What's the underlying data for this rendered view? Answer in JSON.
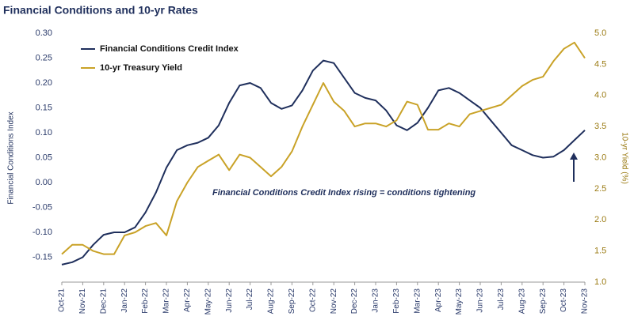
{
  "chart_data": {
    "type": "line",
    "title": "Financial Conditions and 10-yr Rates",
    "annotation": "Financial Conditions Credit Index rising = conditions tightening",
    "ylabel": "Financial Conditions Index",
    "y2label": "10-yr Yield (%)",
    "categories": [
      "Oct-21",
      null,
      "Nov-21",
      null,
      "Dec-21",
      null,
      "Jan-22",
      null,
      "Feb-22",
      null,
      "Mar-22",
      null,
      "Apr-22",
      null,
      "May-22",
      null,
      "Jun-22",
      null,
      "Jul-22",
      null,
      "Aug-22",
      null,
      "Sep-22",
      null,
      "Oct-22",
      null,
      "Nov-22",
      null,
      "Dec-22",
      null,
      "Jan-23",
      null,
      "Feb-23",
      null,
      "Mar-23",
      null,
      "Apr-23",
      null,
      "May-23",
      null,
      "Jun-23",
      null,
      "Jul-23",
      null,
      "Aug-23",
      null,
      "Sep-23",
      null,
      "Oct-23",
      null,
      "Nov-23"
    ],
    "series": [
      {
        "name": "Financial Conditions Credit Index",
        "color": "#1f2f5c",
        "axis": "y",
        "values": [
          -0.165,
          -0.16,
          -0.15,
          -0.125,
          -0.105,
          -0.1,
          -0.1,
          -0.09,
          -0.06,
          -0.02,
          0.03,
          0.065,
          0.075,
          0.08,
          0.09,
          0.115,
          0.16,
          0.195,
          0.2,
          0.19,
          0.16,
          0.148,
          0.155,
          0.185,
          0.225,
          0.245,
          0.24,
          0.21,
          0.18,
          0.17,
          0.165,
          0.145,
          0.115,
          0.105,
          0.12,
          0.15,
          0.185,
          0.19,
          0.18,
          0.165,
          0.15,
          0.125,
          0.1,
          0.075,
          0.065,
          0.055,
          0.05,
          0.052,
          0.065,
          0.085,
          0.105
        ]
      },
      {
        "name": "10-yr Treasury Yield",
        "color": "#c9a227",
        "axis": "y2",
        "values": [
          1.45,
          1.6,
          1.6,
          1.5,
          1.45,
          1.45,
          1.75,
          1.8,
          1.9,
          1.95,
          1.75,
          2.3,
          2.6,
          2.85,
          2.95,
          3.05,
          2.8,
          3.05,
          3.0,
          2.85,
          2.7,
          2.85,
          3.1,
          3.5,
          3.85,
          4.2,
          3.9,
          3.75,
          3.5,
          3.55,
          3.55,
          3.5,
          3.6,
          3.9,
          3.85,
          3.45,
          3.45,
          3.55,
          3.5,
          3.7,
          3.75,
          3.8,
          3.85,
          4.0,
          4.15,
          4.25,
          4.3,
          4.55,
          4.75,
          4.85,
          4.6
        ]
      }
    ],
    "ylim": [
      -0.2,
      0.3
    ],
    "yticks": [
      -0.15,
      {
        "value": -0.1,
        "label": "-0.10"
      },
      {
        "value": -0.05,
        "label": "-0.05"
      },
      {
        "value": 0,
        "label": "0.00"
      },
      {
        "value": 0.05,
        "label": "0.05"
      },
      {
        "value": 0.1,
        "label": "0.10"
      },
      {
        "value": 0.15,
        "label": "0.15"
      },
      {
        "value": 0.2,
        "label": "0.20"
      },
      0.25,
      {
        "value": 0.3,
        "label": "0.30"
      }
    ],
    "y2lim": [
      1.0,
      5.0
    ],
    "y2ticks": [
      {
        "value": 1,
        "label": "1.0"
      },
      1.5,
      {
        "value": 2,
        "label": "2.0"
      },
      2.5,
      {
        "value": 3,
        "label": "3.0"
      },
      3.5,
      {
        "value": 4,
        "label": "4.0"
      },
      4.5,
      {
        "value": 5,
        "label": "5.0"
      }
    ],
    "legend": "upper-left"
  }
}
